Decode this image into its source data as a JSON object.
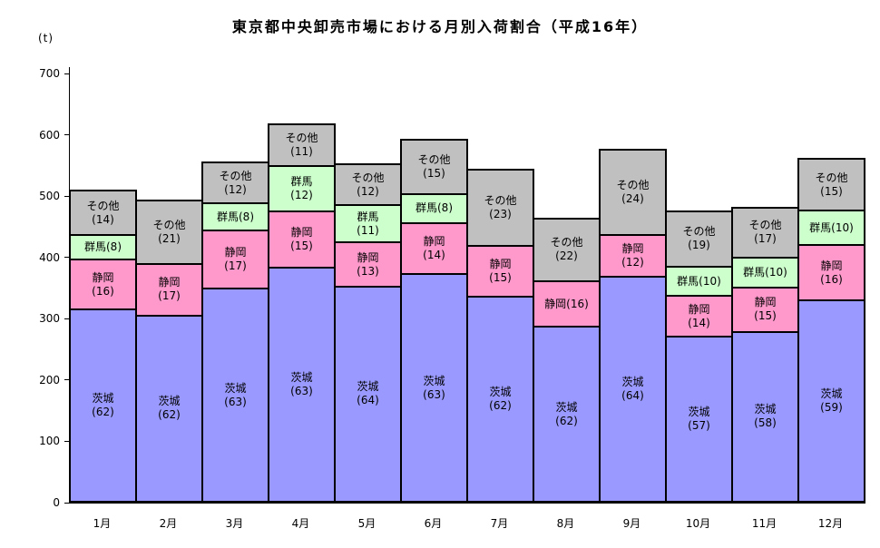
{
  "chart_data": {
    "type": "bar",
    "stacked": true,
    "title": "東京都中央卸売市場における月別入荷割合（平成16年）",
    "unit_label": "(t)",
    "ylim": [
      0,
      700
    ],
    "yticks": [
      "0",
      "100",
      "200",
      "300",
      "400",
      "500",
      "600",
      "700"
    ],
    "grid": false,
    "legend_position": "none",
    "series_names": [
      "茨城",
      "静岡",
      "群馬",
      "その他"
    ],
    "colors": {
      "茨城": "#9999FF",
      "静岡": "#FF99CC",
      "群馬": "#CCFFCC",
      "その他": "#C0C0C0"
    },
    "categories": [
      "1月",
      "2月",
      "3月",
      "4月",
      "5月",
      "6月",
      "7月",
      "8月",
      "9月",
      "10月",
      "11月",
      "12月"
    ],
    "months": [
      {
        "month": "1月",
        "total_t": 510,
        "segments": [
          {
            "name": "茨城",
            "pct": 62,
            "label": "茨城\n(62)"
          },
          {
            "name": "静岡",
            "pct": 16,
            "label": "静岡\n(16)"
          },
          {
            "name": "群馬",
            "pct": 8,
            "label": "群馬(8)"
          },
          {
            "name": "その他",
            "pct": 14,
            "label": "その他\n(14)"
          }
        ]
      },
      {
        "month": "2月",
        "total_t": 495,
        "segments": [
          {
            "name": "茨城",
            "pct": 62,
            "label": "茨城\n(62)"
          },
          {
            "name": "静岡",
            "pct": 17,
            "label": "静岡\n(17)"
          },
          {
            "name": "その他",
            "pct": 21,
            "label": "その他\n(21)"
          }
        ]
      },
      {
        "month": "3月",
        "total_t": 556,
        "segments": [
          {
            "name": "茨城",
            "pct": 63,
            "label": "茨城\n(63)"
          },
          {
            "name": "静岡",
            "pct": 17,
            "label": "静岡\n(17)"
          },
          {
            "name": "群馬",
            "pct": 8,
            "label": "群馬(8)"
          },
          {
            "name": "その他",
            "pct": 12,
            "label": "その他\n(12)"
          }
        ]
      },
      {
        "month": "4月",
        "total_t": 618,
        "segments": [
          {
            "name": "茨城",
            "pct": 63,
            "label": "茨城\n(63)"
          },
          {
            "name": "静岡",
            "pct": 15,
            "label": "静岡\n(15)"
          },
          {
            "name": "群馬",
            "pct": 12,
            "label": "群馬\n(12)"
          },
          {
            "name": "その他",
            "pct": 11,
            "label": "その他\n(11)"
          }
        ]
      },
      {
        "month": "5月",
        "total_t": 553,
        "segments": [
          {
            "name": "茨城",
            "pct": 64,
            "label": "茨城\n(64)"
          },
          {
            "name": "静岡",
            "pct": 13,
            "label": "静岡\n(13)"
          },
          {
            "name": "群馬",
            "pct": 11,
            "label": "群馬\n(11)"
          },
          {
            "name": "その他",
            "pct": 12,
            "label": "その他\n(12)"
          }
        ]
      },
      {
        "month": "6月",
        "total_t": 594,
        "segments": [
          {
            "name": "茨城",
            "pct": 63,
            "label": "茨城\n(63)"
          },
          {
            "name": "静岡",
            "pct": 14,
            "label": "静岡\n(14)"
          },
          {
            "name": "群馬",
            "pct": 8,
            "label": "群馬(8)"
          },
          {
            "name": "その他",
            "pct": 15,
            "label": "その他\n(15)"
          }
        ]
      },
      {
        "month": "7月",
        "total_t": 545,
        "segments": [
          {
            "name": "茨城",
            "pct": 62,
            "label": "茨城\n(62)"
          },
          {
            "name": "静岡",
            "pct": 15,
            "label": "静岡\n(15)"
          },
          {
            "name": "その他",
            "pct": 23,
            "label": "その他\n(23)"
          }
        ]
      },
      {
        "month": "8月",
        "total_t": 465,
        "segments": [
          {
            "name": "茨城",
            "pct": 62,
            "label": "茨城\n(62)"
          },
          {
            "name": "静岡",
            "pct": 16,
            "label": "静岡(16)"
          },
          {
            "name": "その他",
            "pct": 22,
            "label": "その他\n(22)"
          }
        ]
      },
      {
        "month": "9月",
        "total_t": 577,
        "segments": [
          {
            "name": "茨城",
            "pct": 64,
            "label": "茨城\n(64)"
          },
          {
            "name": "静岡",
            "pct": 12,
            "label": "静岡\n(12)"
          },
          {
            "name": "その他",
            "pct": 24,
            "label": "その他\n(24)"
          }
        ]
      },
      {
        "month": "10月",
        "total_t": 477,
        "segments": [
          {
            "name": "茨城",
            "pct": 57,
            "label": "茨城\n(57)"
          },
          {
            "name": "静岡",
            "pct": 14,
            "label": "静岡\n(14)"
          },
          {
            "name": "群馬",
            "pct": 10,
            "label": "群馬(10)"
          },
          {
            "name": "その他",
            "pct": 19,
            "label": "その他\n(19)"
          }
        ]
      },
      {
        "month": "11月",
        "total_t": 483,
        "segments": [
          {
            "name": "茨城",
            "pct": 58,
            "label": "茨城\n(58)"
          },
          {
            "name": "静岡",
            "pct": 15,
            "label": "静岡\n(15)"
          },
          {
            "name": "群馬",
            "pct": 10,
            "label": "群馬(10)"
          },
          {
            "name": "その他",
            "pct": 17,
            "label": "その他\n(17)"
          }
        ]
      },
      {
        "month": "12月",
        "total_t": 562,
        "segments": [
          {
            "name": "茨城",
            "pct": 59,
            "label": "茨城\n(59)"
          },
          {
            "name": "静岡",
            "pct": 16,
            "label": "静岡\n(16)"
          },
          {
            "name": "群馬",
            "pct": 10,
            "label": "群馬(10)"
          },
          {
            "name": "その他",
            "pct": 15,
            "label": "その他\n(15)"
          }
        ]
      }
    ]
  }
}
